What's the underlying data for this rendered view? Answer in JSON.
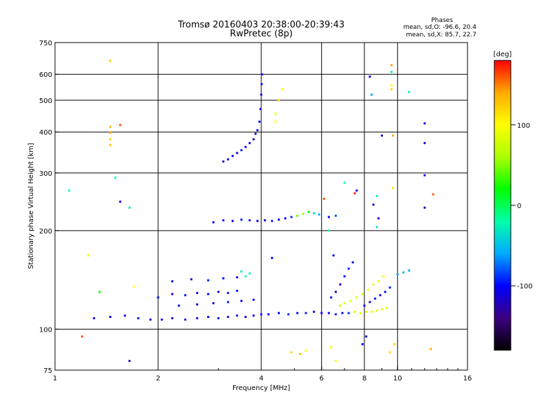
{
  "chart_data": {
    "type": "scatter",
    "title": "Tromsø 20160403 20:38:00-20:39:43",
    "subtitle": "RwPretec (8p)",
    "xlabel": "Frequency [MHz]",
    "ylabel": "Stationary phase Virtual Height [km]",
    "x_scale": "log",
    "y_scale": "log",
    "xlim": [
      1,
      16
    ],
    "ylim": [
      75,
      750
    ],
    "x_ticks": [
      1,
      2,
      4,
      6,
      8,
      10,
      16
    ],
    "y_ticks": [
      75,
      100,
      200,
      300,
      400,
      500,
      600,
      750
    ],
    "grid_x": [
      2,
      4,
      6,
      8,
      10
    ],
    "grid_y": [
      100,
      200,
      300,
      400,
      500,
      600
    ],
    "phases_box": {
      "heading": "Phases",
      "line_o": "mean, sd,O: -96.6, 20.4",
      "line_x": "mean, sd,X: 85.7, 22.7"
    },
    "colorbar": {
      "label": "[deg]",
      "range": [
        -180,
        180
      ],
      "ticks": [
        -100,
        0,
        100
      ],
      "colors": [
        "#000000",
        "#3c0082",
        "#0000ff",
        "#00aaff",
        "#00ffaa",
        "#00ff00",
        "#aaff00",
        "#ffff00",
        "#ffaa00",
        "#ff0000"
      ]
    },
    "series": [
      {
        "points": [
          [
            1.3,
            108,
            -110
          ],
          [
            1.45,
            109,
            -100
          ],
          [
            1.6,
            110,
            -105
          ],
          [
            1.75,
            108,
            -95
          ],
          [
            1.9,
            107,
            -110
          ],
          [
            2.05,
            107,
            -100
          ],
          [
            2.2,
            108,
            -105
          ],
          [
            2.4,
            107,
            -95
          ],
          [
            2.6,
            108,
            -110
          ],
          [
            2.8,
            109,
            -100
          ],
          [
            3.0,
            108,
            -105
          ],
          [
            3.2,
            109,
            -95
          ],
          [
            3.4,
            110,
            -110
          ],
          [
            3.6,
            109,
            -100
          ],
          [
            3.8,
            110,
            -105
          ],
          [
            4.0,
            111,
            -95
          ],
          [
            4.2,
            111,
            -110
          ],
          [
            4.5,
            112,
            -100
          ],
          [
            4.8,
            111,
            -90
          ],
          [
            5.1,
            112,
            -100
          ],
          [
            5.4,
            112,
            -95
          ],
          [
            5.7,
            113,
            -110
          ],
          [
            6.0,
            112,
            -100
          ],
          [
            6.3,
            112,
            -105
          ],
          [
            6.6,
            111,
            -95
          ],
          [
            6.9,
            112,
            -100
          ],
          [
            7.2,
            112,
            -90
          ],
          [
            7.5,
            113,
            80
          ],
          [
            7.8,
            112,
            90
          ],
          [
            8.1,
            113,
            85
          ],
          [
            8.4,
            113,
            95
          ],
          [
            8.7,
            114,
            80
          ],
          [
            9.0,
            115,
            90
          ],
          [
            9.3,
            116,
            85
          ]
        ]
      },
      {
        "points": [
          [
            2.0,
            125,
            -100
          ],
          [
            2.2,
            128,
            -110
          ],
          [
            2.4,
            127,
            -95
          ],
          [
            2.6,
            129,
            -105
          ],
          [
            2.8,
            128,
            -100
          ],
          [
            3.0,
            130,
            -110
          ],
          [
            3.2,
            129,
            -95
          ],
          [
            3.4,
            131,
            -100
          ],
          [
            2.2,
            140,
            -105
          ],
          [
            2.5,
            142,
            -110
          ],
          [
            2.8,
            141,
            -95
          ],
          [
            3.1,
            143,
            -100
          ],
          [
            3.4,
            144,
            -105
          ],
          [
            3.6,
            145,
            -20
          ],
          [
            3.7,
            148,
            -25
          ],
          [
            3.5,
            150,
            -30
          ],
          [
            2.3,
            118,
            -100
          ],
          [
            2.6,
            119,
            -105
          ],
          [
            2.9,
            120,
            -110
          ],
          [
            3.2,
            121,
            -95
          ],
          [
            3.5,
            122,
            -100
          ],
          [
            3.8,
            123,
            -105
          ]
        ]
      },
      {
        "points": [
          [
            6.4,
            125,
            -100
          ],
          [
            6.6,
            130,
            -105
          ],
          [
            6.8,
            137,
            -110
          ],
          [
            7.0,
            145,
            -100
          ],
          [
            7.2,
            153,
            -95
          ],
          [
            7.4,
            160,
            -105
          ],
          [
            6.8,
            118,
            80
          ],
          [
            7.0,
            120,
            85
          ],
          [
            7.3,
            122,
            90
          ],
          [
            7.6,
            125,
            80
          ],
          [
            7.9,
            128,
            85
          ],
          [
            8.2,
            132,
            90
          ],
          [
            8.5,
            137,
            85
          ],
          [
            8.8,
            140,
            95
          ],
          [
            9.1,
            145,
            90
          ],
          [
            8.0,
            118,
            -100
          ],
          [
            8.3,
            121,
            -110
          ],
          [
            8.6,
            124,
            -95
          ],
          [
            8.9,
            127,
            -105
          ],
          [
            9.2,
            130,
            -100
          ],
          [
            9.5,
            134,
            -95
          ],
          [
            10.0,
            147,
            -60
          ],
          [
            10.4,
            149,
            -50
          ],
          [
            10.8,
            151,
            -55
          ]
        ]
      },
      {
        "points": [
          [
            2.9,
            212,
            -100
          ],
          [
            3.1,
            215,
            -105
          ],
          [
            3.3,
            214,
            -110
          ],
          [
            3.5,
            216,
            -95
          ],
          [
            3.7,
            215,
            -100
          ],
          [
            3.9,
            214,
            -105
          ],
          [
            4.1,
            215,
            -110
          ],
          [
            4.3,
            214,
            -95
          ],
          [
            4.5,
            216,
            -100
          ],
          [
            4.7,
            218,
            -105
          ],
          [
            4.9,
            220,
            -90
          ],
          [
            5.1,
            222,
            40
          ],
          [
            5.3,
            225,
            60
          ],
          [
            5.5,
            228,
            20
          ],
          [
            5.7,
            226,
            -30
          ],
          [
            5.9,
            224,
            -60
          ],
          [
            6.3,
            220,
            -100
          ],
          [
            6.6,
            222,
            -80
          ]
        ]
      },
      {
        "points": [
          [
            3.1,
            325,
            -110
          ],
          [
            3.2,
            330,
            -105
          ],
          [
            3.3,
            338,
            -100
          ],
          [
            3.4,
            345,
            -110
          ],
          [
            3.5,
            352,
            -95
          ],
          [
            3.6,
            360,
            -100
          ],
          [
            3.7,
            370,
            -105
          ],
          [
            3.8,
            380,
            -110
          ],
          [
            3.85,
            395,
            -100
          ],
          [
            3.9,
            405,
            -105
          ],
          [
            3.95,
            430,
            -100
          ],
          [
            3.98,
            470,
            -110
          ],
          [
            4.0,
            520,
            -100
          ],
          [
            4.01,
            560,
            -95
          ],
          [
            4.02,
            600,
            -105
          ]
        ]
      },
      {
        "points": [
          [
            1.45,
            660,
            120
          ],
          [
            1.45,
            415,
            130
          ],
          [
            1.45,
            398,
            140
          ],
          [
            1.45,
            380,
            120
          ],
          [
            1.45,
            365,
            130
          ],
          [
            1.55,
            420,
            160
          ],
          [
            1.1,
            265,
            -20
          ],
          [
            1.2,
            95,
            160
          ],
          [
            1.35,
            130,
            20
          ],
          [
            1.5,
            290,
            -20
          ],
          [
            1.55,
            245,
            -110
          ],
          [
            1.65,
            235,
            -30
          ],
          [
            1.65,
            80,
            -120
          ],
          [
            4.4,
            430,
            100
          ],
          [
            4.5,
            500,
            110
          ],
          [
            4.6,
            540,
            100
          ],
          [
            4.4,
            455,
            90
          ],
          [
            4.9,
            85,
            120
          ],
          [
            5.2,
            84,
            130
          ],
          [
            5.4,
            86,
            100
          ],
          [
            6.4,
            88,
            90
          ],
          [
            6.6,
            80,
            100
          ],
          [
            7.5,
            260,
            170
          ],
          [
            7.6,
            265,
            -110
          ],
          [
            8.3,
            590,
            -110
          ],
          [
            8.4,
            520,
            -60
          ],
          [
            9.0,
            390,
            -120
          ],
          [
            9.6,
            640,
            140
          ],
          [
            9.6,
            610,
            -30
          ],
          [
            9.6,
            555,
            100
          ],
          [
            9.6,
            540,
            120
          ],
          [
            9.7,
            390,
            140
          ],
          [
            9.7,
            270,
            110
          ],
          [
            10.8,
            530,
            -30
          ],
          [
            12.0,
            425,
            -110
          ],
          [
            12.0,
            370,
            -110
          ],
          [
            12.0,
            295,
            -110
          ],
          [
            12.0,
            235,
            -120
          ],
          [
            12.7,
            258,
            160
          ],
          [
            12.5,
            87,
            140
          ],
          [
            8.5,
            240,
            -110
          ],
          [
            8.7,
            255,
            -20
          ],
          [
            8.8,
            218,
            -110
          ],
          [
            8.7,
            205,
            -30
          ],
          [
            7.9,
            90,
            -100
          ],
          [
            8.1,
            95,
            -110
          ],
          [
            9.5,
            85,
            120
          ],
          [
            9.8,
            90,
            120
          ],
          [
            1.25,
            168,
            90
          ],
          [
            1.7,
            135,
            100
          ],
          [
            6.5,
            168,
            -100
          ],
          [
            6.3,
            200,
            -20
          ],
          [
            7.0,
            280,
            -20
          ],
          [
            6.1,
            250,
            160
          ],
          [
            4.3,
            165,
            -100
          ]
        ]
      }
    ]
  }
}
